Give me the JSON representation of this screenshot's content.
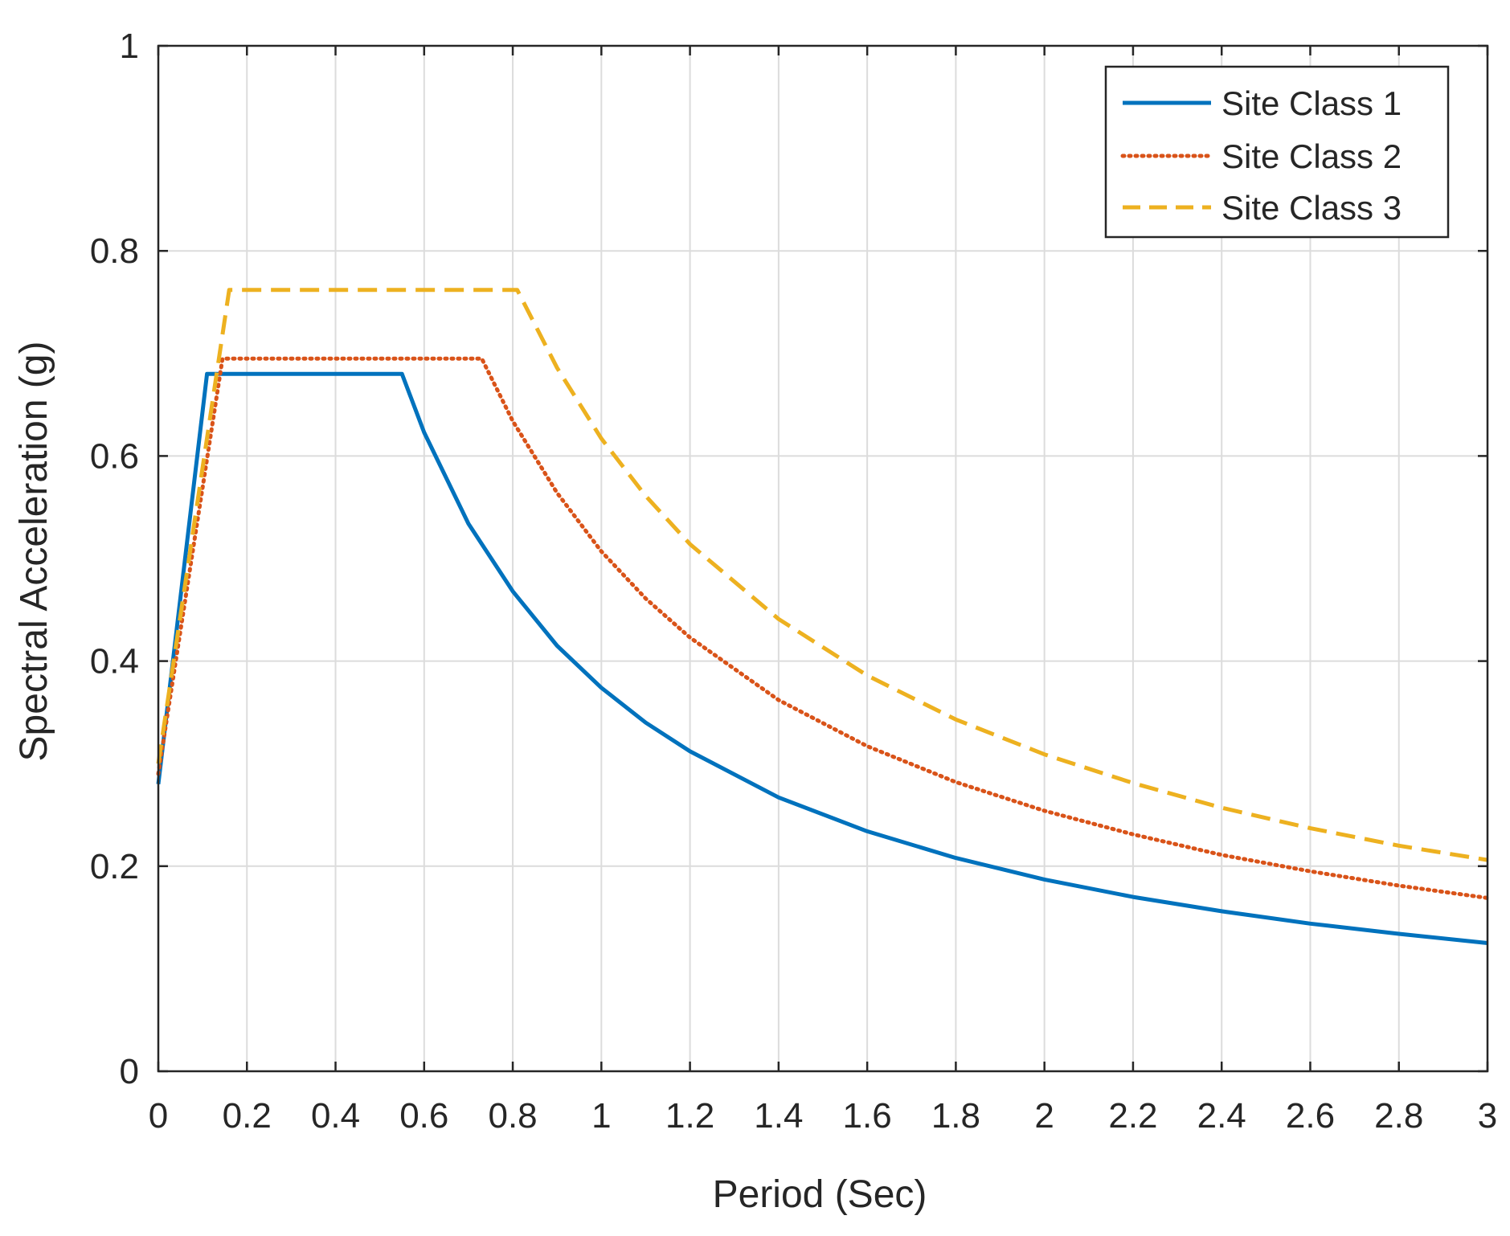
{
  "chart_data": {
    "type": "line",
    "title": "",
    "xlabel": "Period (Sec)",
    "ylabel": "Spectral Acceleration (g)",
    "xlim": [
      0,
      3
    ],
    "ylim": [
      0,
      1
    ],
    "grid": true,
    "legend_position": "top-right",
    "x_ticks": [
      0,
      0.2,
      0.4,
      0.6,
      0.8,
      1,
      1.2,
      1.4,
      1.6,
      1.8,
      2,
      2.2,
      2.4,
      2.6,
      2.8,
      3
    ],
    "x_tick_labels": [
      "0",
      "0.2",
      "0.4",
      "0.6",
      "0.8",
      "1",
      "1.2",
      "1.4",
      "1.6",
      "1.8",
      "2",
      "2.2",
      "2.4",
      "2.6",
      "2.8",
      "3"
    ],
    "y_ticks": [
      0,
      0.2,
      0.4,
      0.6,
      0.8,
      1
    ],
    "y_tick_labels": [
      "0",
      "0.2",
      "0.4",
      "0.6",
      "0.8",
      "1"
    ],
    "series": [
      {
        "name": "Site Class 1",
        "color": "#0072BD",
        "style": "solid",
        "x": [
          0,
          0.11,
          0.55,
          0.6,
          0.7,
          0.8,
          0.9,
          1.0,
          1.1,
          1.2,
          1.4,
          1.6,
          1.8,
          2.0,
          2.2,
          2.4,
          2.6,
          2.8,
          3.0
        ],
        "y": [
          0.28,
          0.68,
          0.68,
          0.623,
          0.534,
          0.468,
          0.415,
          0.374,
          0.34,
          0.312,
          0.267,
          0.234,
          0.208,
          0.187,
          0.17,
          0.156,
          0.144,
          0.134,
          0.125
        ]
      },
      {
        "name": "Site Class 2",
        "color": "#D95319",
        "style": "dotted",
        "x": [
          0,
          0.145,
          0.73,
          0.8,
          0.9,
          1.0,
          1.1,
          1.2,
          1.4,
          1.6,
          1.8,
          2.0,
          2.2,
          2.4,
          2.6,
          2.8,
          3.0
        ],
        "y": [
          0.29,
          0.695,
          0.695,
          0.634,
          0.564,
          0.507,
          0.461,
          0.423,
          0.362,
          0.317,
          0.282,
          0.254,
          0.231,
          0.211,
          0.195,
          0.181,
          0.169
        ]
      },
      {
        "name": "Site Class 3",
        "color": "#EDB120",
        "style": "dashed",
        "x": [
          0,
          0.16,
          0.81,
          0.9,
          1.0,
          1.1,
          1.2,
          1.4,
          1.6,
          1.8,
          2.0,
          2.2,
          2.4,
          2.6,
          2.8,
          3.0
        ],
        "y": [
          0.3,
          0.762,
          0.762,
          0.686,
          0.617,
          0.561,
          0.514,
          0.441,
          0.386,
          0.343,
          0.309,
          0.281,
          0.257,
          0.237,
          0.22,
          0.206
        ]
      }
    ]
  }
}
